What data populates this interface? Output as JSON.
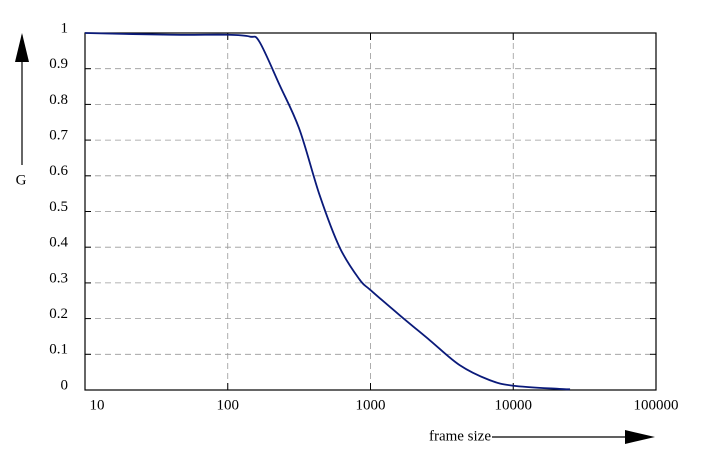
{
  "chart_data": {
    "type": "line",
    "x": [
      10,
      40,
      100,
      143,
      167,
      231,
      318,
      440,
      607,
      836,
      1000,
      1596,
      2592,
      4200,
      6800,
      10000,
      21000,
      25000
    ],
    "values": [
      1.0,
      0.995,
      0.995,
      0.99,
      0.975,
      0.854,
      0.73,
      0.546,
      0.4,
      0.31,
      0.28,
      0.21,
      0.14,
      0.07,
      0.028,
      0.012,
      0.003,
      0.002
    ],
    "color": "#0a1a7a",
    "xlim": [
      10,
      100000
    ],
    "xticks": [
      10,
      100,
      1000,
      10000,
      100000
    ],
    "xscale": "log",
    "ylim": [
      0,
      1
    ],
    "yticks": [
      0,
      0.1,
      0.2,
      0.3,
      0.4,
      0.5,
      0.6,
      0.7,
      0.8,
      0.9,
      1
    ],
    "grid": true,
    "xlabel": "frame size",
    "ylabel": "G"
  }
}
